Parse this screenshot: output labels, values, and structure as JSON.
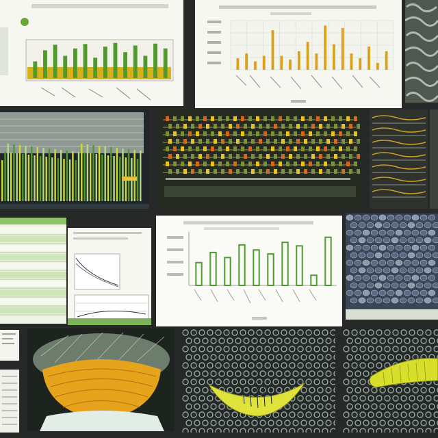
{
  "colors": {
    "bg": "#262928",
    "paper": "#f7f7f2",
    "dark_panel": "#1c211f",
    "green": "#4f9a2b",
    "light_green": "#b6d98a",
    "yellow": "#e9c21f",
    "gold": "#d9a21a",
    "orange": "#d8661b",
    "gray_texture": "#9aa39d",
    "navy_texture": "#3b4a63",
    "lime": "#cfdc2a"
  },
  "chart_data": [
    {
      "type": "bar",
      "values": [
        0.45,
        0.75,
        0.9,
        0.6,
        0.8,
        0.92,
        0.55,
        0.85,
        0.95,
        0.7,
        0.88,
        0.6,
        0.93,
        0.8
      ],
      "ylim": [
        0,
        1
      ],
      "grid": false
    },
    {
      "type": "bar",
      "values": [
        0.25,
        0.35,
        0.18,
        0.3,
        0.85,
        0.3,
        0.22,
        0.4,
        0.6,
        0.35,
        0.95,
        0.55,
        0.9,
        0.35,
        0.25,
        0.5,
        0.15,
        0.4
      ],
      "ylim": [
        0,
        1
      ],
      "grid": true
    },
    {
      "type": "bar",
      "values": [
        0.45,
        0.65,
        0.55,
        0.8,
        0.7,
        0.62,
        0.85,
        0.78,
        0.2,
        0.95
      ],
      "ylim": [
        0,
        1
      ],
      "grid": false
    }
  ]
}
